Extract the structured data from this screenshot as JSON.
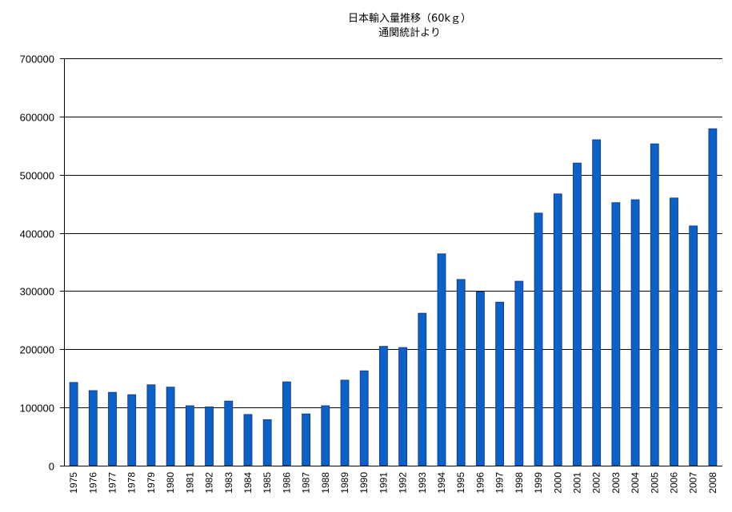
{
  "chart_data": {
    "type": "bar",
    "title": "日本輸入量推移（60kｇ）",
    "subtitle": "通関統計より",
    "xlabel": "",
    "ylabel": "",
    "categories": [
      "1975",
      "1976",
      "1977",
      "1978",
      "1979",
      "1980",
      "1981",
      "1982",
      "1983",
      "1984",
      "1985",
      "1986",
      "1987",
      "1988",
      "1989",
      "1990",
      "1991",
      "1992",
      "1993",
      "1994",
      "1995",
      "1996",
      "1997",
      "1998",
      "1999",
      "2000",
      "2001",
      "2002",
      "2003",
      "2004",
      "2005",
      "2006",
      "2007",
      "2008"
    ],
    "values": [
      143000,
      129000,
      126000,
      122000,
      139000,
      135000,
      103000,
      101000,
      111000,
      88000,
      79000,
      144000,
      89000,
      103000,
      147000,
      163000,
      205000,
      203000,
      262000,
      364000,
      320000,
      299000,
      281000,
      317000,
      434000,
      467000,
      520000,
      560000,
      452000,
      457000,
      553000,
      460000,
      412000,
      579000
    ],
    "ylim": [
      0,
      700000
    ],
    "yticks": [
      0,
      100000,
      200000,
      300000,
      400000,
      500000,
      600000,
      700000
    ],
    "grid": true,
    "legend": "none",
    "colors": {
      "bar": "#0a62c9",
      "bar_edge": "#16307a",
      "grid": "#000000",
      "axis": "#000000"
    }
  }
}
